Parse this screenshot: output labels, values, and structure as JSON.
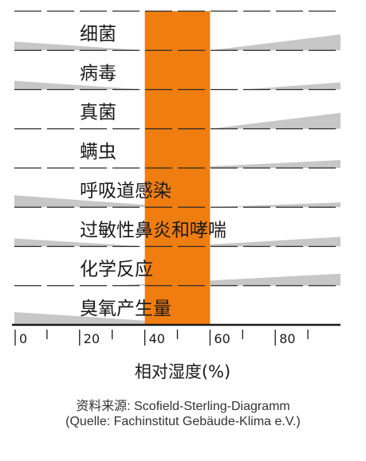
{
  "chart_data": {
    "type": "area",
    "title": "",
    "xlabel": "相对湿度(%)",
    "ylabel": "",
    "xlim": [
      0,
      100
    ],
    "x_ticks": [
      0,
      20,
      40,
      60,
      80
    ],
    "optimal_zone": [
      40,
      60
    ],
    "colors": {
      "optimal_zone": "#f07d0f",
      "band": "#c7c7c7",
      "grid": "#2a2a2a"
    },
    "series": [
      {
        "name": "细菌",
        "x": [
          0,
          40,
          60,
          100
        ],
        "values": [
          0.55,
          0,
          0,
          1.0
        ]
      },
      {
        "name": "病毒",
        "x": [
          0,
          40,
          70,
          100
        ],
        "values": [
          0.55,
          0,
          0,
          0.45
        ]
      },
      {
        "name": "真菌",
        "x": [
          0,
          60,
          100
        ],
        "values": [
          0,
          0,
          1.0
        ]
      },
      {
        "name": "螨虫",
        "x": [
          0,
          50,
          100
        ],
        "values": [
          0,
          0,
          0.5
        ]
      },
      {
        "name": "呼吸道感染",
        "x": [
          0,
          50,
          60,
          100
        ],
        "values": [
          0.75,
          0,
          0,
          0.3
        ]
      },
      {
        "name": "过敏性鼻炎和哮喘",
        "x": [
          0,
          40,
          50,
          100
        ],
        "values": [
          0.5,
          0,
          0,
          0.6
        ]
      },
      {
        "name": "化学反应",
        "x": [
          0,
          30,
          100
        ],
        "values": [
          0,
          0,
          0.75
        ]
      },
      {
        "name": "臭氧产生量",
        "x": [
          0,
          60,
          100
        ],
        "values": [
          0.8,
          0,
          0
        ]
      }
    ]
  },
  "source": {
    "line1": "资料来源: Scofield-Sterling-Diagramm",
    "line2": "(Quelle: Fachinstitut Gebäude-Klima e.V.)"
  }
}
